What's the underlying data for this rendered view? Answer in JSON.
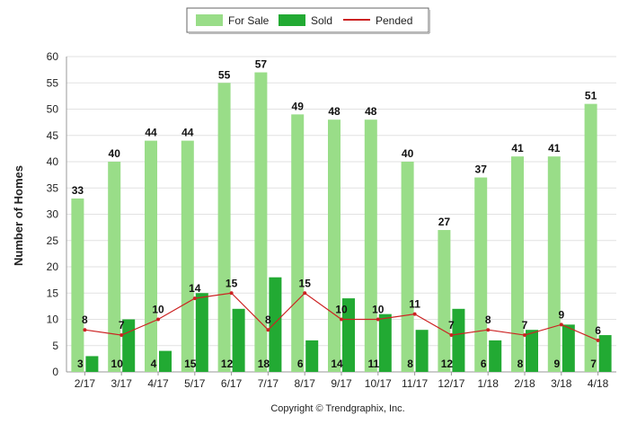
{
  "chart_data": {
    "type": "bar",
    "categories": [
      "2/17",
      "3/17",
      "4/17",
      "5/17",
      "6/17",
      "7/17",
      "8/17",
      "9/17",
      "10/17",
      "11/17",
      "12/17",
      "1/18",
      "2/18",
      "3/18",
      "4/18"
    ],
    "series": [
      {
        "name": "For Sale",
        "kind": "bar",
        "color": "#99DD88",
        "values": [
          33,
          40,
          44,
          44,
          55,
          57,
          49,
          48,
          48,
          40,
          27,
          37,
          41,
          41,
          51
        ]
      },
      {
        "name": "Sold",
        "kind": "bar",
        "color": "#22AA33",
        "values": [
          3,
          10,
          4,
          15,
          12,
          18,
          6,
          14,
          11,
          8,
          12,
          6,
          8,
          9,
          7
        ]
      },
      {
        "name": "Pended",
        "kind": "line",
        "color": "#CC2222",
        "values": [
          8,
          7,
          10,
          14,
          15,
          8,
          15,
          10,
          10,
          11,
          7,
          8,
          7,
          9,
          6
        ]
      }
    ],
    "ylabel": "Number of Homes",
    "xlabel": "",
    "ylim": [
      0,
      60
    ],
    "yticks": [
      0,
      5,
      10,
      15,
      20,
      25,
      30,
      35,
      40,
      45,
      50,
      55,
      60
    ],
    "grid": true,
    "legend_position": "top-center"
  },
  "footer": {
    "copyright": "Copyright © Trendgraphix, Inc."
  }
}
